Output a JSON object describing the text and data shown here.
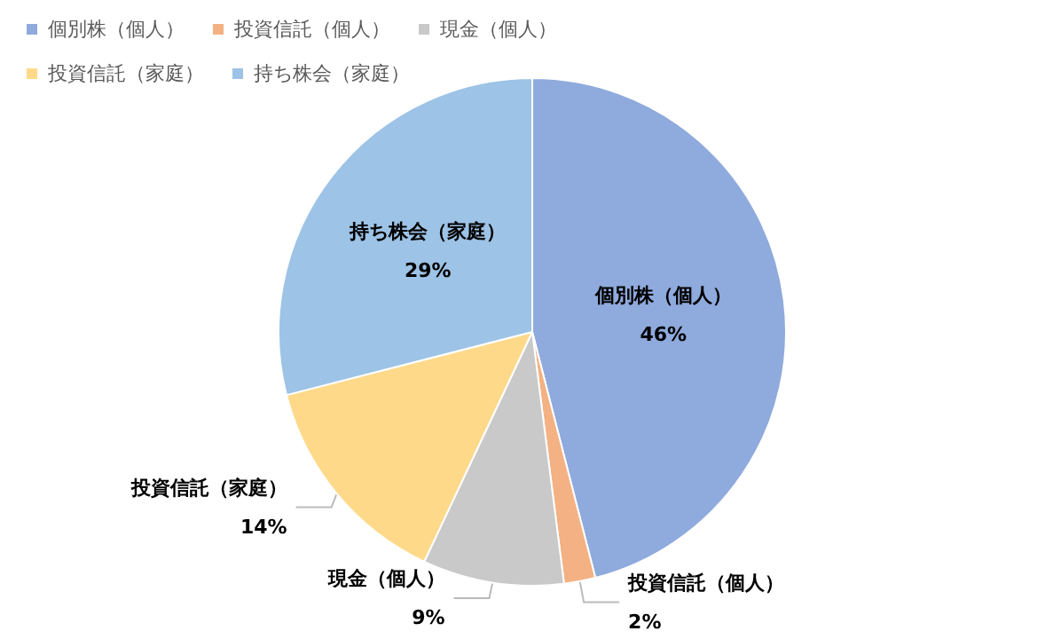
{
  "chart_data": {
    "type": "pie",
    "categories": [
      "個別株（個人）",
      "投資信託（個人）",
      "現金（個人）",
      "投資信託（家庭）",
      "持ち株会（家庭）"
    ],
    "values": [
      46,
      2,
      9,
      14,
      29
    ],
    "colors": [
      "#8faadc",
      "#f4b183",
      "#c9c9c9",
      "#ffd98a",
      "#9dc3e6"
    ],
    "value_labels": [
      "46%",
      "2%",
      "9%",
      "14%",
      "29%"
    ],
    "legend": "top left"
  }
}
